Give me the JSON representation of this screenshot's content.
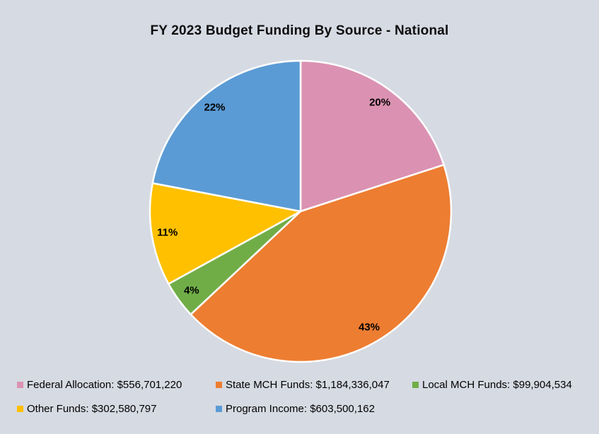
{
  "page": {
    "background_color": "#d6dae3",
    "slice_border_color": "#ffffff",
    "text_color": "#000000"
  },
  "header": {
    "title": "FY 2023 Budget Funding By Source - National"
  },
  "chart_data": {
    "type": "pie",
    "title": "FY 2023 Budget Funding By Source - National",
    "start_angle_deg": 0,
    "direction": "clockwise",
    "legend_position": "bottom",
    "slices": [
      {
        "label": "Federal Allocation",
        "amount_text": "$556,701,220",
        "value": 556701220,
        "pct": 20,
        "pct_label": "20%",
        "color": "#db92b2"
      },
      {
        "label": "State MCH Funds",
        "amount_text": "$1,184,336,047",
        "value": 1184336047,
        "pct": 43,
        "pct_label": "43%",
        "color": "#ed7d31"
      },
      {
        "label": "Local MCH Funds",
        "amount_text": "$99,904,534",
        "value": 99904534,
        "pct": 4,
        "pct_label": "4%",
        "color": "#70ad47"
      },
      {
        "label": "Other Funds",
        "amount_text": "$302,580,797",
        "value": 302580797,
        "pct": 11,
        "pct_label": "11%",
        "color": "#ffc000"
      },
      {
        "label": "Program Income",
        "amount_text": "$603,500,162",
        "value": 603500162,
        "pct": 22,
        "pct_label": "22%",
        "color": "#5b9bd5"
      }
    ],
    "legend_items": [
      {
        "text": "Federal Allocation: $556,701,220",
        "color": "#db92b2"
      },
      {
        "text": "State MCH Funds: $1,184,336,047",
        "color": "#ed7d31"
      },
      {
        "text": "Local MCH Funds: $99,904,534",
        "color": "#70ad47"
      },
      {
        "text": "Other Funds: $302,580,797",
        "color": "#ffc000"
      },
      {
        "text": "Program Income: $603,500,162",
        "color": "#5b9bd5"
      }
    ]
  }
}
